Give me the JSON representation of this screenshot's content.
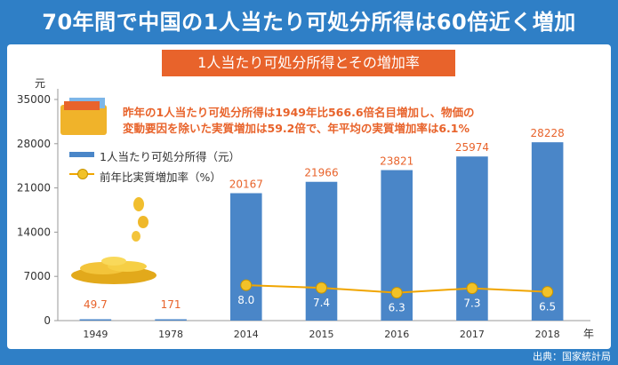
{
  "headline": "70年間で中国の1人当たり可処分所得は60倍近く増加",
  "subtitle": "1人当たり可処分所得とその増加率",
  "note_line1": "昨年の1人当たり可処分所得は1949年比566.6倍名目増加し、物価の",
  "note_line2": "変動要因を除いた実質増加は59.2倍で、年平均の実質増加率は6.1%",
  "source": "出典：国家統計局",
  "colors": {
    "bar": "#4a86c8",
    "line": "#f0a500",
    "dot": "#f2c228",
    "accent": "#e8632b",
    "frame": "#2f7fc6"
  },
  "chart_data": {
    "type": "bar",
    "categories": [
      "1949",
      "1978",
      "2014",
      "2015",
      "2016",
      "2017",
      "2018"
    ],
    "series": [
      {
        "name": "1人当たり可処分所得（元）",
        "type": "bar",
        "values": [
          49.7,
          171,
          20167,
          21966,
          23821,
          25974,
          28228
        ]
      },
      {
        "name": "前年比実質増加率（%）",
        "type": "line",
        "values": [
          null,
          null,
          8.0,
          7.4,
          6.3,
          7.3,
          6.5
        ]
      }
    ],
    "bar_labels": [
      "49.7",
      "171",
      "20167",
      "21966",
      "23821",
      "25974",
      "28228"
    ],
    "line_labels": [
      "",
      "",
      "8.0",
      "7.4",
      "6.3",
      "7.3",
      "6.5"
    ],
    "yticks": [
      "0",
      "7000",
      "14000",
      "21000",
      "28000",
      "35000"
    ],
    "ytick_values": [
      0,
      7000,
      14000,
      21000,
      28000,
      35000
    ],
    "ylim": [
      0,
      35000
    ],
    "yunit": "元",
    "xunit": "年",
    "legend_position": "top-left",
    "grid": false
  }
}
